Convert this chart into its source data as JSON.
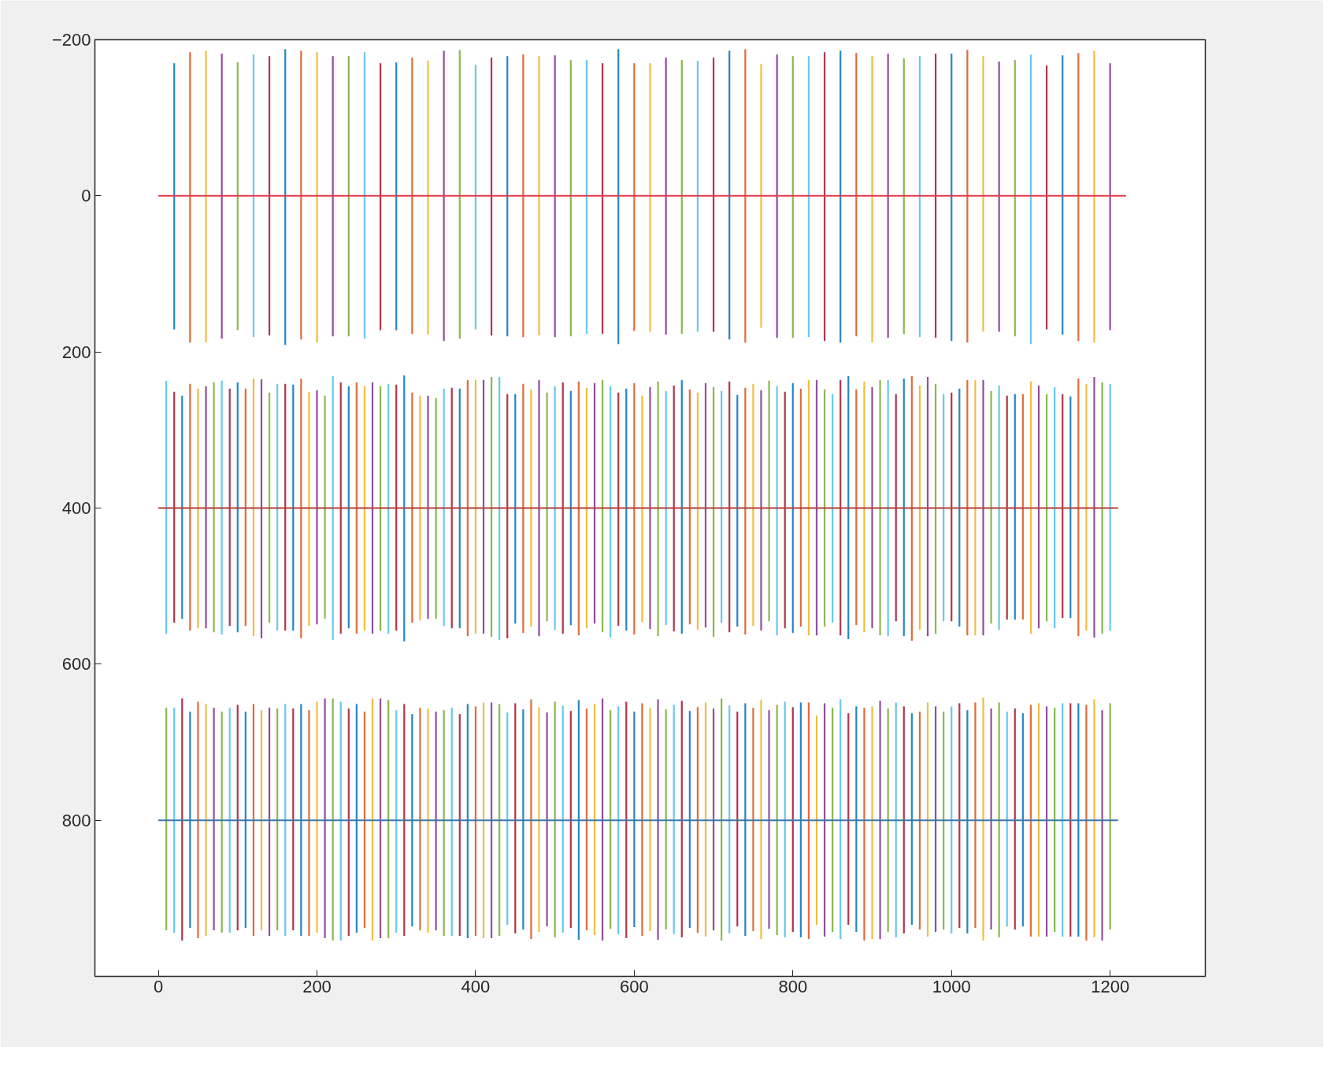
{
  "chart_data": {
    "type": "bar",
    "xlim": [
      -80,
      1320
    ],
    "ylim": [
      1000,
      -200
    ],
    "xticks": [
      0,
      200,
      400,
      600,
      800,
      1000,
      1200
    ],
    "yticks": [
      -200,
      0,
      200,
      400,
      600,
      800
    ],
    "grid": false,
    "series": [
      {
        "x": [
          20,
          40,
          60,
          80,
          100,
          120,
          140,
          160,
          180,
          200,
          220,
          240,
          260,
          280,
          300,
          320,
          340,
          360,
          380,
          400,
          420,
          440,
          460,
          480,
          500,
          520,
          540,
          560,
          580,
          600,
          620,
          640,
          660,
          680,
          700,
          720,
          740,
          760,
          780,
          800,
          820,
          840,
          860,
          880,
          900,
          920,
          940,
          960,
          980,
          1000,
          1020,
          1040,
          1060,
          1080,
          1100,
          1120,
          1140,
          1160,
          1180,
          1200
        ],
        "base": [
          -170,
          -184,
          -186,
          -182,
          -171,
          -181,
          -179,
          -188,
          -186,
          -184,
          -179,
          -179,
          -184,
          -170,
          -171,
          -177,
          -173,
          -186,
          -187,
          -168,
          -177,
          -179,
          -181,
          -179,
          -180,
          -174,
          -174,
          -170,
          -188,
          -170,
          -170,
          -177,
          -174,
          -173,
          -177,
          -186,
          -188,
          -169,
          -181,
          -179,
          -179,
          -184,
          -186,
          -183,
          -179,
          -182,
          -176,
          -179,
          -182,
          -182,
          -187,
          -179,
          -172,
          -174,
          -181,
          -167,
          -180,
          -183,
          -186,
          -170
        ],
        "values": [
          341,
          372,
          374,
          365,
          343,
          362,
          358,
          379,
          370,
          372,
          359,
          359,
          367,
          342,
          343,
          354,
          351,
          372,
          370,
          339,
          356,
          359,
          362,
          358,
          361,
          354,
          351,
          347,
          378,
          343,
          344,
          355,
          351,
          347,
          351,
          370,
          376,
          338,
          363,
          361,
          360,
          370,
          374,
          363,
          367,
          364,
          353,
          360,
          364,
          368,
          375,
          353,
          346,
          354,
          371,
          338,
          358,
          369,
          374,
          342
        ],
        "colors": [
          "#0072bd",
          "#d95319",
          "#edb120",
          "#7e2f8e",
          "#77ac30",
          "#4dbeee",
          "#a2142f",
          "#0072bd",
          "#d95319",
          "#edb120",
          "#7e2f8e",
          "#77ac30",
          "#4dbeee",
          "#a2142f",
          "#0072bd",
          "#d95319",
          "#edb120",
          "#7e2f8e",
          "#77ac30",
          "#4dbeee",
          "#a2142f",
          "#0072bd",
          "#d95319",
          "#edb120",
          "#7e2f8e",
          "#77ac30",
          "#4dbeee",
          "#a2142f",
          "#0072bd",
          "#d95319",
          "#edb120",
          "#7e2f8e",
          "#77ac30",
          "#4dbeee",
          "#a2142f",
          "#0072bd",
          "#d95319",
          "#edb120",
          "#7e2f8e",
          "#77ac30",
          "#4dbeee",
          "#a2142f",
          "#0072bd",
          "#d95319",
          "#edb120",
          "#7e2f8e",
          "#77ac30",
          "#4dbeee",
          "#a2142f",
          "#0072bd",
          "#d95319",
          "#edb120",
          "#7e2f8e",
          "#77ac30",
          "#4dbeee",
          "#a2142f",
          "#0072bd",
          "#d95319",
          "#edb120",
          "#7e2f8e"
        ]
      },
      {
        "x": [
          10,
          20,
          30,
          40,
          50,
          60,
          70,
          80,
          90,
          100,
          110,
          120,
          130,
          140,
          150,
          160,
          170,
          180,
          190,
          200,
          210,
          220,
          230,
          240,
          250,
          260,
          270,
          280,
          290,
          300,
          310,
          320,
          330,
          340,
          350,
          360,
          370,
          380,
          390,
          400,
          410,
          420,
          430,
          440,
          450,
          460,
          470,
          480,
          490,
          500,
          510,
          520,
          530,
          540,
          550,
          560,
          570,
          580,
          590,
          600,
          610,
          620,
          630,
          640,
          650,
          660,
          670,
          680,
          690,
          700,
          710,
          720,
          730,
          740,
          750,
          760,
          770,
          780,
          790,
          800,
          810,
          820,
          830,
          840,
          850,
          860,
          870,
          880,
          890,
          900,
          910,
          920,
          930,
          940,
          950,
          960,
          970,
          980,
          990,
          1000,
          1010,
          1020,
          1030,
          1040,
          1050,
          1060,
          1070,
          1080,
          1090,
          1100,
          1110,
          1120,
          1130,
          1140,
          1150,
          1160,
          1170,
          1180,
          1190,
          1200
        ],
        "base": [
          237,
          251,
          256,
          241,
          247,
          244,
          239,
          237,
          247,
          239,
          247,
          234,
          235,
          252,
          241,
          241,
          242,
          234,
          251,
          249,
          256,
          231,
          239,
          244,
          239,
          244,
          239,
          244,
          241,
          242,
          230,
          252,
          256,
          256,
          259,
          247,
          246,
          247,
          236,
          236,
          236,
          232,
          232,
          254,
          254,
          241,
          248,
          236,
          252,
          244,
          239,
          250,
          238,
          246,
          240,
          236,
          244,
          252,
          247,
          240,
          256,
          245,
          238,
          250,
          243,
          236,
          248,
          252,
          240,
          245,
          250,
          238,
          255,
          246,
          241,
          249,
          237,
          244,
          251,
          240,
          247,
          236,
          236,
          248,
          254,
          236,
          231,
          248,
          238,
          245,
          236,
          236,
          254,
          234,
          231,
          243,
          232,
          241,
          254,
          252,
          247,
          236,
          236,
          236,
          250,
          243,
          256,
          254,
          254,
          238,
          243,
          254,
          245,
          254,
          257,
          234,
          241,
          232,
          239,
          241
        ],
        "values": [
          324,
          296,
          286,
          316,
          307,
          310,
          320,
          325,
          304,
          320,
          304,
          330,
          332,
          295,
          316,
          316,
          315,
          333,
          300,
          300,
          286,
          338,
          322,
          310,
          322,
          313,
          322,
          313,
          320,
          315,
          341,
          295,
          288,
          286,
          283,
          304,
          308,
          307,
          328,
          325,
          325,
          333,
          337,
          313,
          294,
          319,
          304,
          328,
          293,
          312,
          322,
          300,
          325,
          308,
          308,
          323,
          322,
          299,
          310,
          322,
          290,
          310,
          326,
          300,
          315,
          325,
          301,
          304,
          313,
          320,
          297,
          321,
          297,
          316,
          310,
          308,
          308,
          319,
          303,
          320,
          305,
          327,
          327,
          304,
          293,
          327,
          337,
          302,
          321,
          309,
          327,
          328,
          291,
          330,
          339,
          313,
          332,
          320,
          291,
          293,
          305,
          327,
          327,
          327,
          298,
          313,
          287,
          289,
          289,
          323,
          311,
          291,
          309,
          287,
          284,
          330,
          316,
          334,
          322,
          316
        ],
        "colors": [
          "#4dbeee",
          "#a2142f",
          "#0072bd",
          "#d95319",
          "#edb120",
          "#7e2f8e",
          "#77ac30",
          "#4dbeee",
          "#a2142f",
          "#0072bd",
          "#d95319",
          "#edb120",
          "#7e2f8e",
          "#77ac30",
          "#4dbeee",
          "#a2142f",
          "#0072bd",
          "#d95319",
          "#edb120",
          "#7e2f8e",
          "#77ac30",
          "#4dbeee",
          "#a2142f",
          "#0072bd",
          "#d95319",
          "#edb120",
          "#7e2f8e",
          "#77ac30",
          "#4dbeee",
          "#a2142f",
          "#0072bd",
          "#d95319",
          "#edb120",
          "#7e2f8e",
          "#77ac30",
          "#4dbeee",
          "#a2142f",
          "#0072bd",
          "#d95319",
          "#edb120",
          "#7e2f8e",
          "#77ac30",
          "#4dbeee",
          "#a2142f",
          "#0072bd",
          "#d95319",
          "#edb120",
          "#7e2f8e",
          "#77ac30",
          "#4dbeee",
          "#a2142f",
          "#0072bd",
          "#d95319",
          "#edb120",
          "#7e2f8e",
          "#77ac30",
          "#4dbeee",
          "#a2142f",
          "#0072bd",
          "#d95319",
          "#edb120",
          "#7e2f8e",
          "#77ac30",
          "#4dbeee",
          "#a2142f",
          "#0072bd",
          "#d95319",
          "#edb120",
          "#7e2f8e",
          "#77ac30",
          "#4dbeee",
          "#a2142f",
          "#0072bd",
          "#d95319",
          "#edb120",
          "#7e2f8e",
          "#77ac30",
          "#4dbeee",
          "#a2142f",
          "#0072bd",
          "#d95319",
          "#edb120",
          "#7e2f8e",
          "#77ac30",
          "#4dbeee",
          "#a2142f",
          "#0072bd",
          "#d95319",
          "#edb120",
          "#7e2f8e",
          "#77ac30",
          "#4dbeee",
          "#a2142f",
          "#0072bd",
          "#d95319",
          "#edb120",
          "#7e2f8e",
          "#77ac30",
          "#4dbeee",
          "#a2142f",
          "#0072bd",
          "#d95319",
          "#edb120",
          "#7e2f8e",
          "#77ac30",
          "#4dbeee",
          "#a2142f",
          "#0072bd",
          "#d95319",
          "#edb120",
          "#7e2f8e",
          "#77ac30",
          "#4dbeee",
          "#a2142f",
          "#0072bd",
          "#d95319",
          "#edb120",
          "#7e2f8e",
          "#77ac30",
          "#4dbeee"
        ]
      },
      {
        "x": [
          10,
          20,
          30,
          40,
          50,
          60,
          70,
          80,
          90,
          100,
          110,
          120,
          130,
          140,
          150,
          160,
          170,
          180,
          190,
          200,
          210,
          220,
          230,
          240,
          250,
          260,
          270,
          280,
          290,
          300,
          310,
          320,
          330,
          340,
          350,
          360,
          370,
          380,
          390,
          400,
          410,
          420,
          430,
          440,
          450,
          460,
          470,
          480,
          490,
          500,
          510,
          520,
          530,
          540,
          550,
          560,
          570,
          580,
          590,
          600,
          610,
          620,
          630,
          640,
          650,
          660,
          670,
          680,
          690,
          700,
          710,
          720,
          730,
          740,
          750,
          760,
          770,
          780,
          790,
          800,
          810,
          820,
          830,
          840,
          850,
          860,
          870,
          880,
          890,
          900,
          910,
          920,
          930,
          940,
          950,
          960,
          970,
          980,
          990,
          1000,
          1010,
          1020,
          1030,
          1040,
          1050,
          1060,
          1070,
          1080,
          1090,
          1100,
          1110,
          1120,
          1130,
          1140,
          1150,
          1160,
          1170,
          1180,
          1190,
          1200
        ],
        "base": [
          656,
          656,
          644,
          661,
          648,
          651,
          656,
          661,
          656,
          652,
          661,
          651,
          659,
          656,
          657,
          651,
          657,
          651,
          659,
          648,
          644,
          644,
          648,
          657,
          651,
          661,
          644,
          644,
          646,
          659,
          651,
          664,
          656,
          657,
          661,
          659,
          656,
          664,
          651,
          654,
          649,
          649,
          651,
          662,
          650,
          658,
          645,
          655,
          662,
          648,
          653,
          660,
          646,
          657,
          651,
          644,
          659,
          654,
          648,
          661,
          650,
          656,
          645,
          658,
          652,
          647,
          660,
          655,
          649,
          657,
          644,
          653,
          661,
          650,
          656,
          646,
          659,
          652,
          648,
          655,
          649,
          649,
          666,
          650,
          656,
          645,
          663,
          654,
          656,
          654,
          647,
          657,
          649,
          654,
          663,
          661,
          649,
          654,
          661,
          654,
          650,
          659,
          649,
          643,
          657,
          649,
          661,
          657,
          663,
          652,
          650,
          654,
          656,
          650,
          650,
          650,
          652,
          645,
          659,
          650
        ],
        "values": [
          285,
          288,
          310,
          277,
          303,
          297,
          285,
          283,
          288,
          289,
          277,
          297,
          282,
          292,
          284,
          297,
          284,
          297,
          289,
          296,
          307,
          310,
          306,
          291,
          293,
          277,
          310,
          307,
          305,
          285,
          297,
          272,
          285,
          287,
          280,
          289,
          292,
          284,
          300,
          294,
          302,
          302,
          297,
          272,
          295,
          282,
          307,
          288,
          274,
          302,
          291,
          278,
          307,
          284,
          296,
          310,
          280,
          292,
          303,
          276,
          298,
          286,
          308,
          282,
          294,
          303,
          278,
          289,
          300,
          284,
          310,
          292,
          275,
          298,
          286,
          306,
          280,
          295,
          302,
          288,
          301,
          303,
          268,
          299,
          287,
          307,
          271,
          289,
          298,
          298,
          305,
          286,
          301,
          291,
          271,
          279,
          300,
          289,
          279,
          291,
          288,
          286,
          289,
          311,
          283,
          301,
          275,
          283,
          273,
          297,
          299,
          295,
          287,
          299,
          299,
          299,
          302,
          305,
          295,
          290
        ],
        "colors": [
          "#77ac30",
          "#4dbeee",
          "#a2142f",
          "#0072bd",
          "#d95319",
          "#edb120",
          "#7e2f8e",
          "#77ac30",
          "#4dbeee",
          "#a2142f",
          "#0072bd",
          "#d95319",
          "#edb120",
          "#7e2f8e",
          "#77ac30",
          "#4dbeee",
          "#a2142f",
          "#0072bd",
          "#d95319",
          "#edb120",
          "#7e2f8e",
          "#77ac30",
          "#4dbeee",
          "#a2142f",
          "#0072bd",
          "#d95319",
          "#edb120",
          "#7e2f8e",
          "#77ac30",
          "#4dbeee",
          "#a2142f",
          "#0072bd",
          "#d95319",
          "#edb120",
          "#7e2f8e",
          "#77ac30",
          "#4dbeee",
          "#a2142f",
          "#0072bd",
          "#d95319",
          "#edb120",
          "#7e2f8e",
          "#77ac30",
          "#4dbeee",
          "#a2142f",
          "#0072bd",
          "#d95319",
          "#edb120",
          "#7e2f8e",
          "#77ac30",
          "#4dbeee",
          "#a2142f",
          "#0072bd",
          "#d95319",
          "#edb120",
          "#7e2f8e",
          "#77ac30",
          "#4dbeee",
          "#a2142f",
          "#0072bd",
          "#d95319",
          "#edb120",
          "#7e2f8e",
          "#77ac30",
          "#4dbeee",
          "#a2142f",
          "#0072bd",
          "#d95319",
          "#edb120",
          "#7e2f8e",
          "#77ac30",
          "#4dbeee",
          "#a2142f",
          "#0072bd",
          "#d95319",
          "#edb120",
          "#7e2f8e",
          "#77ac30",
          "#4dbeee",
          "#a2142f",
          "#0072bd",
          "#d95319",
          "#edb120",
          "#7e2f8e",
          "#77ac30",
          "#4dbeee",
          "#a2142f",
          "#0072bd",
          "#d95319",
          "#edb120",
          "#7e2f8e",
          "#77ac30",
          "#4dbeee",
          "#a2142f",
          "#0072bd",
          "#d95319",
          "#edb120",
          "#7e2f8e",
          "#77ac30",
          "#4dbeee",
          "#a2142f",
          "#0072bd",
          "#d95319",
          "#edb120",
          "#7e2f8e",
          "#77ac30",
          "#4dbeee",
          "#a2142f",
          "#0072bd",
          "#d95319",
          "#edb120",
          "#7e2f8e",
          "#77ac30",
          "#4dbeee",
          "#a2142f",
          "#0072bd",
          "#d95319",
          "#edb120",
          "#7e2f8e",
          "#77ac30"
        ]
      },
      {
        "type": "line",
        "color": "#e03c4c",
        "x": [
          0,
          1220
        ],
        "values": [
          0,
          0
        ]
      },
      {
        "type": "line",
        "color": "#b5403a",
        "x": [
          0,
          1210
        ],
        "values": [
          400,
          400
        ]
      },
      {
        "type": "line",
        "color": "#3f76a6",
        "x": [
          0,
          1210
        ],
        "values": [
          800,
          800
        ]
      }
    ]
  }
}
